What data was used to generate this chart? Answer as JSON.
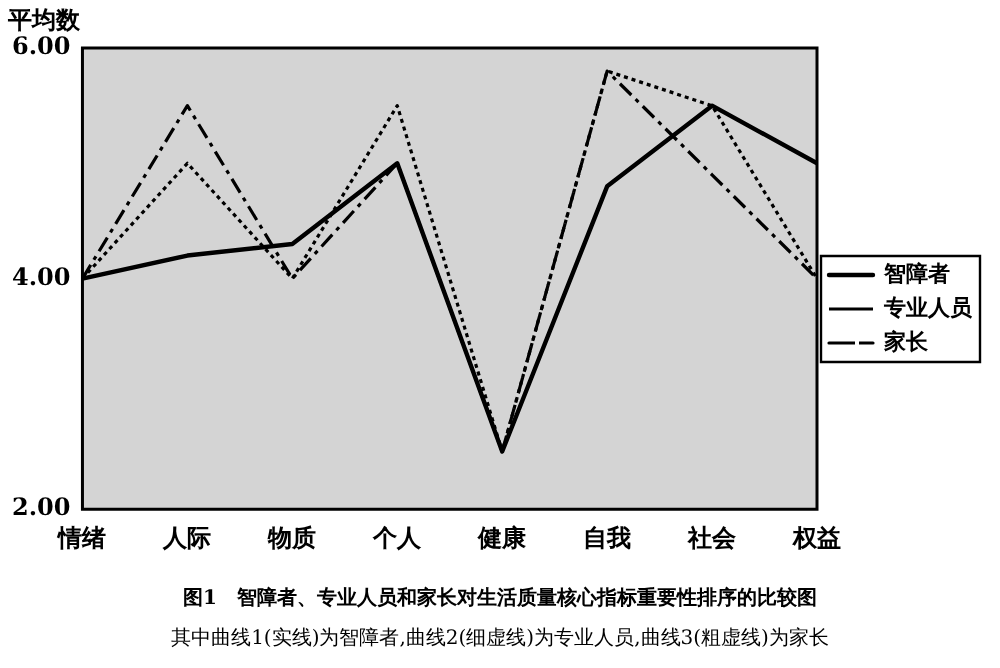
{
  "chart_data": {
    "type": "line",
    "title": "图1　智障者、专业人员和家长对生活质量核心指标重要性排序的比较图",
    "ylabel": "平均数",
    "annotations": [
      "其中曲线1(实线)为智障者,曲线2(细虚线)为专业人员,曲线3(粗虚线)为家长"
    ],
    "categories": [
      "情绪",
      "人际",
      "物质",
      "个人",
      "健康",
      "自我",
      "社会",
      "权益"
    ],
    "series": [
      {
        "name": "智障者",
        "color": "#000000",
        "line_style": "solid",
        "values": [
          4.0,
          4.2,
          4.3,
          5.0,
          2.5,
          4.8,
          5.5,
          5.0
        ]
      },
      {
        "name": "专业人员",
        "color": "#000000",
        "line_style": "dotted",
        "values": [
          4.0,
          5.0,
          4.0,
          5.5,
          2.5,
          5.8,
          5.5,
          4.0
        ]
      },
      {
        "name": "家长",
        "color": "#000000",
        "line_style": "dashed",
        "values": [
          4.0,
          5.5,
          4.0,
          5.0,
          2.5,
          5.8,
          4.9,
          4.0
        ]
      }
    ],
    "ylim": [
      2,
      6
    ],
    "yticks": [
      {
        "value": 2,
        "label": "2.00"
      },
      {
        "value": 4,
        "label": "4.00"
      },
      {
        "value": 6,
        "label": "6.00"
      }
    ],
    "grid": false,
    "legend": "right",
    "marker": "none"
  }
}
